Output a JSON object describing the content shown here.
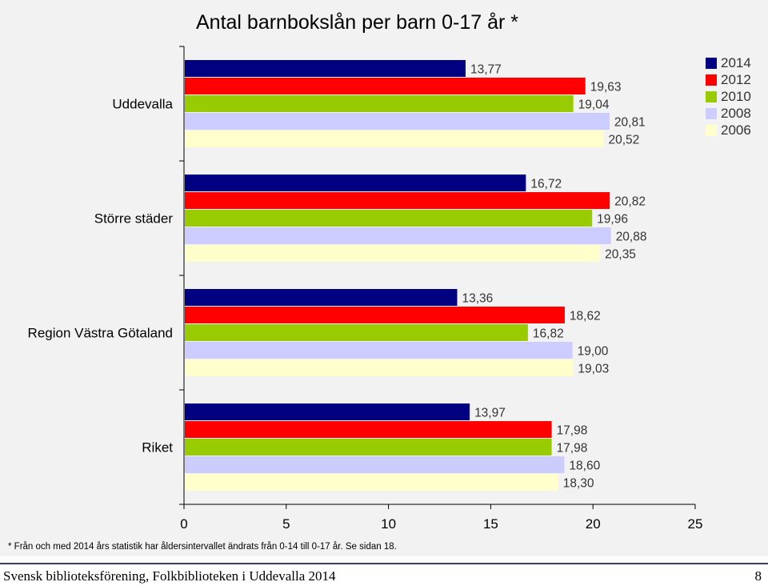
{
  "chart_data": {
    "type": "bar",
    "orientation": "horizontal",
    "title": "Antal barnbokslån per barn 0-17 år *",
    "categories": [
      "Uddevalla",
      "Större städer",
      "Region Västra Götaland",
      "Riket"
    ],
    "series": [
      {
        "name": "2014",
        "color": "#000080",
        "values": [
          13.77,
          16.72,
          13.36,
          13.97
        ],
        "labels": [
          "13,77",
          "16,72",
          "13,36",
          "13,97"
        ]
      },
      {
        "name": "2012",
        "color": "#ff0000",
        "values": [
          19.63,
          20.82,
          18.62,
          17.98
        ],
        "labels": [
          "19,63",
          "20,82",
          "18,62",
          "17,98"
        ]
      },
      {
        "name": "2010",
        "color": "#99cc00",
        "values": [
          19.04,
          19.96,
          16.82,
          17.98
        ],
        "labels": [
          "19,04",
          "19,96",
          "16,82",
          "17,98"
        ]
      },
      {
        "name": "2008",
        "color": "#ccccff",
        "values": [
          20.81,
          20.88,
          19.0,
          18.6
        ],
        "labels": [
          "20,81",
          "20,88",
          "19,00",
          "18,60"
        ]
      },
      {
        "name": "2006",
        "color": "#ffffcc",
        "values": [
          20.52,
          20.35,
          19.03,
          18.3
        ],
        "labels": [
          "20,52",
          "20,35",
          "19,03",
          "18,30"
        ]
      }
    ],
    "xlim": [
      0,
      25
    ],
    "xticks": [
      "0",
      "5",
      "10",
      "15",
      "20",
      "25"
    ],
    "grid": false,
    "legend_position": "top-right"
  },
  "footnote": "* Från och med 2014 års statistik har åldersintervallet ändrats från 0-14 till 0-17 år. Se sidan 18.",
  "footer": {
    "text": "Svensk biblioteksförening, Folkbiblioteken i Uddevalla 2014",
    "page": "8"
  }
}
